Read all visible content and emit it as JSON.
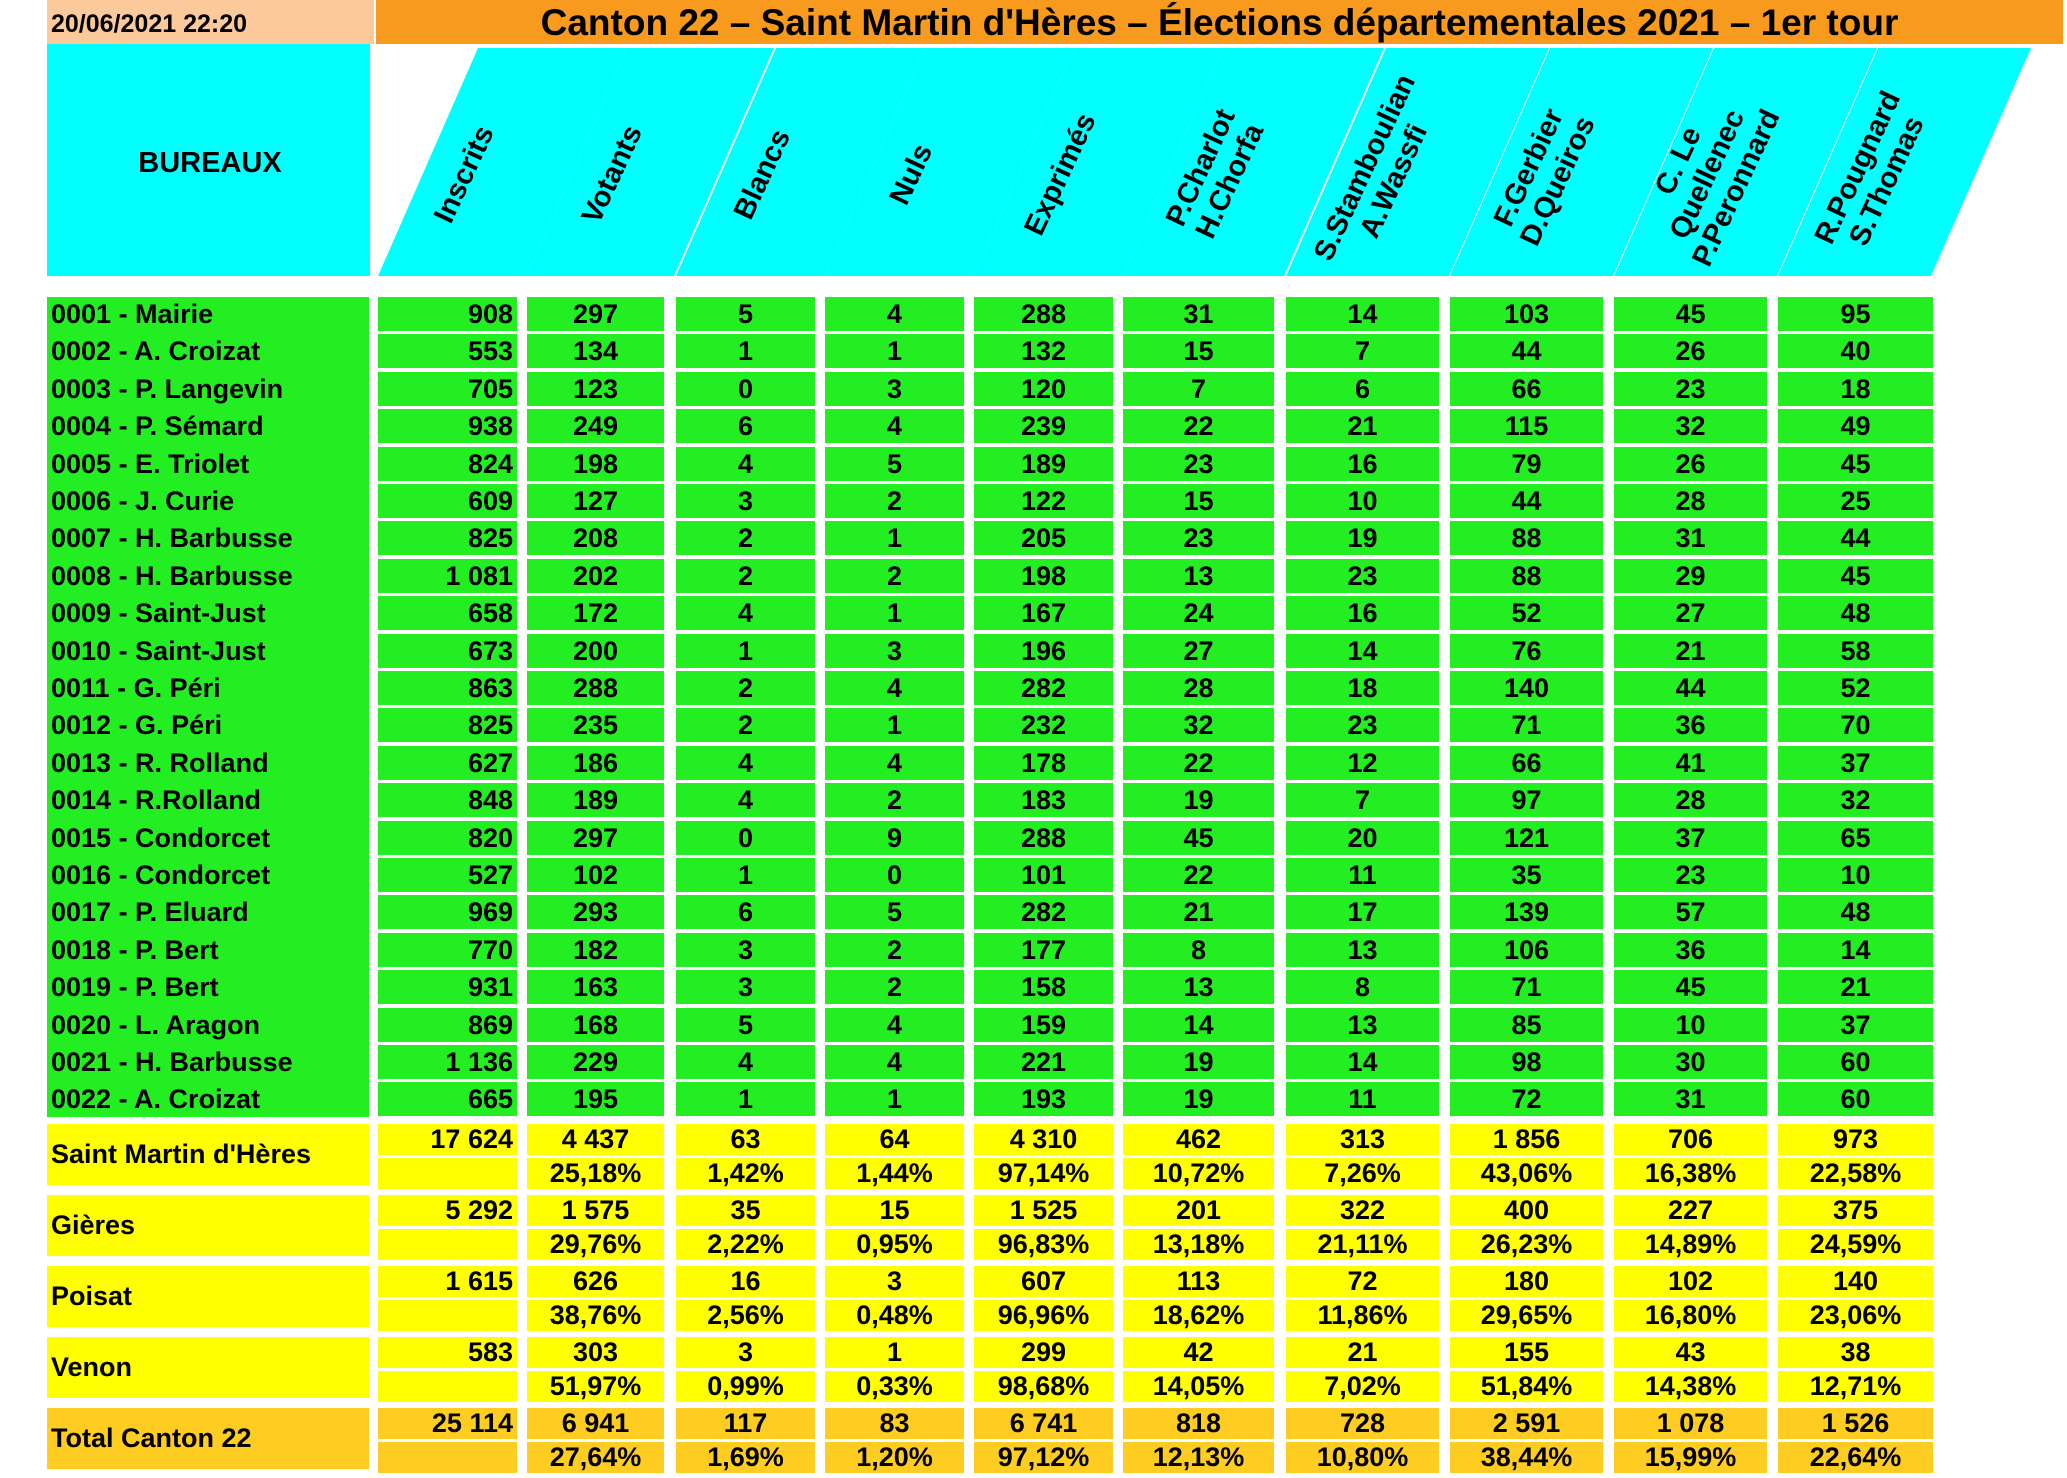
{
  "header": {
    "datetime": "20/06/2021 22:20",
    "title": "Canton 22 – Saint Martin d'Hères – Élections départementales 2021 – 1er tour",
    "bureaux_label": "BUREAUX"
  },
  "columns": [
    {
      "key": "inscrits",
      "lines": [
        "Inscrits"
      ]
    },
    {
      "key": "votants",
      "lines": [
        "Votants"
      ]
    },
    {
      "key": "blancs",
      "lines": [
        "Blancs"
      ]
    },
    {
      "key": "nuls",
      "lines": [
        "Nuls"
      ]
    },
    {
      "key": "exprimes",
      "lines": [
        "Exprimés"
      ]
    },
    {
      "key": "charlot_chorfa",
      "lines": [
        "P.Charlot",
        "H.Chorfa"
      ]
    },
    {
      "key": "stamboulian_wassfi",
      "lines": [
        "S.Stamboulian",
        "A.Wassfi"
      ]
    },
    {
      "key": "gerbier_queiros",
      "lines": [
        "F.Gerbier",
        "D.Queiros"
      ]
    },
    {
      "key": "lequellenec_peronnard",
      "lines": [
        "C. Le",
        "Quellenec",
        "P.Peronnard"
      ]
    },
    {
      "key": "pougnard_thomas",
      "lines": [
        "R.Pougnard",
        "S.Thomas"
      ]
    }
  ],
  "bureaux": [
    {
      "name": "0001 - Mairie",
      "values": [
        "908",
        "297",
        "5",
        "4",
        "288",
        "31",
        "14",
        "103",
        "45",
        "95"
      ]
    },
    {
      "name": "0002 - A. Croizat",
      "values": [
        "553",
        "134",
        "1",
        "1",
        "132",
        "15",
        "7",
        "44",
        "26",
        "40"
      ]
    },
    {
      "name": "0003 - P. Langevin",
      "values": [
        "705",
        "123",
        "0",
        "3",
        "120",
        "7",
        "6",
        "66",
        "23",
        "18"
      ]
    },
    {
      "name": "0004 - P. Sémard",
      "values": [
        "938",
        "249",
        "6",
        "4",
        "239",
        "22",
        "21",
        "115",
        "32",
        "49"
      ]
    },
    {
      "name": "0005 - E. Triolet",
      "values": [
        "824",
        "198",
        "4",
        "5",
        "189",
        "23",
        "16",
        "79",
        "26",
        "45"
      ]
    },
    {
      "name": "0006 - J. Curie",
      "values": [
        "609",
        "127",
        "3",
        "2",
        "122",
        "15",
        "10",
        "44",
        "28",
        "25"
      ]
    },
    {
      "name": "0007 - H. Barbusse",
      "values": [
        "825",
        "208",
        "2",
        "1",
        "205",
        "23",
        "19",
        "88",
        "31",
        "44"
      ]
    },
    {
      "name": "0008 - H. Barbusse",
      "values": [
        "1 081",
        "202",
        "2",
        "2",
        "198",
        "13",
        "23",
        "88",
        "29",
        "45"
      ]
    },
    {
      "name": "0009 - Saint-Just",
      "values": [
        "658",
        "172",
        "4",
        "1",
        "167",
        "24",
        "16",
        "52",
        "27",
        "48"
      ]
    },
    {
      "name": "0010 - Saint-Just",
      "values": [
        "673",
        "200",
        "1",
        "3",
        "196",
        "27",
        "14",
        "76",
        "21",
        "58"
      ]
    },
    {
      "name": "0011 - G. Péri",
      "values": [
        "863",
        "288",
        "2",
        "4",
        "282",
        "28",
        "18",
        "140",
        "44",
        "52"
      ]
    },
    {
      "name": "0012 - G. Péri",
      "values": [
        "825",
        "235",
        "2",
        "1",
        "232",
        "32",
        "23",
        "71",
        "36",
        "70"
      ]
    },
    {
      "name": "0013 - R. Rolland",
      "values": [
        "627",
        "186",
        "4",
        "4",
        "178",
        "22",
        "12",
        "66",
        "41",
        "37"
      ]
    },
    {
      "name": "0014 - R.Rolland",
      "values": [
        "848",
        "189",
        "4",
        "2",
        "183",
        "19",
        "7",
        "97",
        "28",
        "32"
      ]
    },
    {
      "name": "0015 - Condorcet",
      "values": [
        "820",
        "297",
        "0",
        "9",
        "288",
        "45",
        "20",
        "121",
        "37",
        "65"
      ]
    },
    {
      "name": "0016 - Condorcet",
      "values": [
        "527",
        "102",
        "1",
        "0",
        "101",
        "22",
        "11",
        "35",
        "23",
        "10"
      ]
    },
    {
      "name": "0017 - P. Eluard",
      "values": [
        "969",
        "293",
        "6",
        "5",
        "282",
        "21",
        "17",
        "139",
        "57",
        "48"
      ]
    },
    {
      "name": "0018 - P. Bert",
      "values": [
        "770",
        "182",
        "3",
        "2",
        "177",
        "8",
        "13",
        "106",
        "36",
        "14"
      ]
    },
    {
      "name": "0019 - P. Bert",
      "values": [
        "931",
        "163",
        "3",
        "2",
        "158",
        "13",
        "8",
        "71",
        "45",
        "21"
      ]
    },
    {
      "name": "0020 - L. Aragon",
      "values": [
        "869",
        "168",
        "5",
        "4",
        "159",
        "14",
        "13",
        "85",
        "10",
        "37"
      ]
    },
    {
      "name": "0021 - H. Barbusse",
      "values": [
        "1 136",
        "229",
        "4",
        "4",
        "221",
        "19",
        "14",
        "98",
        "30",
        "60"
      ]
    },
    {
      "name": "0022 - A. Croizat",
      "values": [
        "665",
        "195",
        "1",
        "1",
        "193",
        "19",
        "11",
        "72",
        "31",
        "60"
      ]
    }
  ],
  "communes": [
    {
      "name": "Saint Martin d'Hères",
      "values": [
        "17 624",
        "4 437",
        "63",
        "64",
        "4 310",
        "462",
        "313",
        "1 856",
        "706",
        "973"
      ],
      "percents": [
        "",
        "25,18%",
        "1,42%",
        "1,44%",
        "97,14%",
        "10,72%",
        "7,26%",
        "43,06%",
        "16,38%",
        "22,58%"
      ]
    },
    {
      "name": "Gières",
      "values": [
        "5 292",
        "1 575",
        "35",
        "15",
        "1 525",
        "201",
        "322",
        "400",
        "227",
        "375"
      ],
      "percents": [
        "",
        "29,76%",
        "2,22%",
        "0,95%",
        "96,83%",
        "13,18%",
        "21,11%",
        "26,23%",
        "14,89%",
        "24,59%"
      ]
    },
    {
      "name": "Poisat",
      "values": [
        "1 615",
        "626",
        "16",
        "3",
        "607",
        "113",
        "72",
        "180",
        "102",
        "140"
      ],
      "percents": [
        "",
        "38,76%",
        "2,56%",
        "0,48%",
        "96,96%",
        "18,62%",
        "11,86%",
        "29,65%",
        "16,80%",
        "23,06%"
      ]
    },
    {
      "name": "Venon",
      "values": [
        "583",
        "303",
        "3",
        "1",
        "299",
        "42",
        "21",
        "155",
        "43",
        "38"
      ],
      "percents": [
        "",
        "51,97%",
        "0,99%",
        "0,33%",
        "98,68%",
        "14,05%",
        "7,02%",
        "51,84%",
        "14,38%",
        "12,71%"
      ]
    }
  ],
  "total": {
    "name": "Total Canton 22",
    "values": [
      "25 114",
      "6 941",
      "117",
      "83",
      "6 741",
      "818",
      "728",
      "2 591",
      "1 078",
      "1 526"
    ],
    "percents": [
      "",
      "27,64%",
      "1,69%",
      "1,20%",
      "97,12%",
      "12,13%",
      "10,80%",
      "38,44%",
      "15,99%",
      "22,64%"
    ]
  },
  "colors": {
    "date_bg": "#fbc99a",
    "title_bg": "#f79a1e",
    "header_bg": "#00ffff",
    "bureau_bg": "#22ee22",
    "commune_bg": "#ffff00",
    "total_bg": "#ffcc22"
  }
}
